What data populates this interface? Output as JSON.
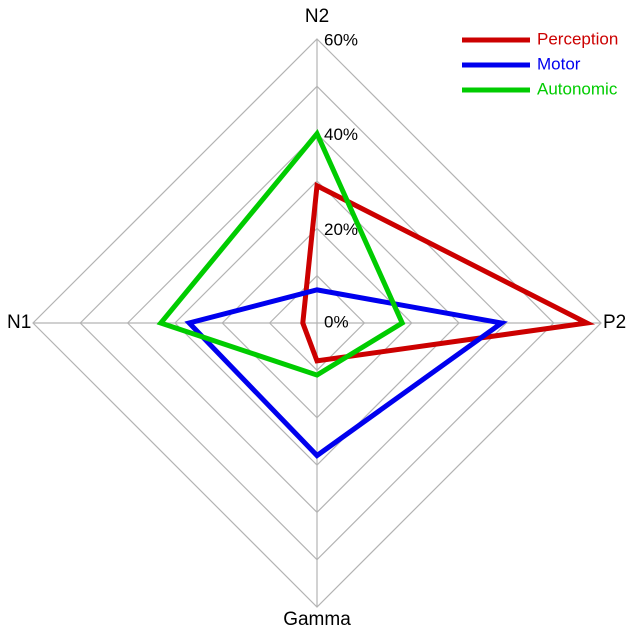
{
  "chart_data": {
    "type": "radar",
    "axes": [
      "N2",
      "P2",
      "Gamma",
      "N1"
    ],
    "rings": [
      0,
      10,
      20,
      30,
      40,
      50,
      60
    ],
    "tick_labels": [
      {
        "value": 0,
        "label": "0%"
      },
      {
        "value": 20,
        "label": "20%"
      },
      {
        "value": 40,
        "label": "40%"
      },
      {
        "value": 60,
        "label": "60%"
      }
    ],
    "rlim": [
      0,
      60
    ],
    "legend_position": "top-right",
    "series": [
      {
        "name": "Perception",
        "color": "#cc0000",
        "values": [
          29,
          57,
          8,
          3
        ]
      },
      {
        "name": "Motor",
        "color": "#0000ee",
        "values": [
          7,
          39,
          28,
          27
        ]
      },
      {
        "name": "Autonomic",
        "color": "#00cc00",
        "values": [
          40,
          18,
          11,
          33
        ]
      }
    ]
  }
}
